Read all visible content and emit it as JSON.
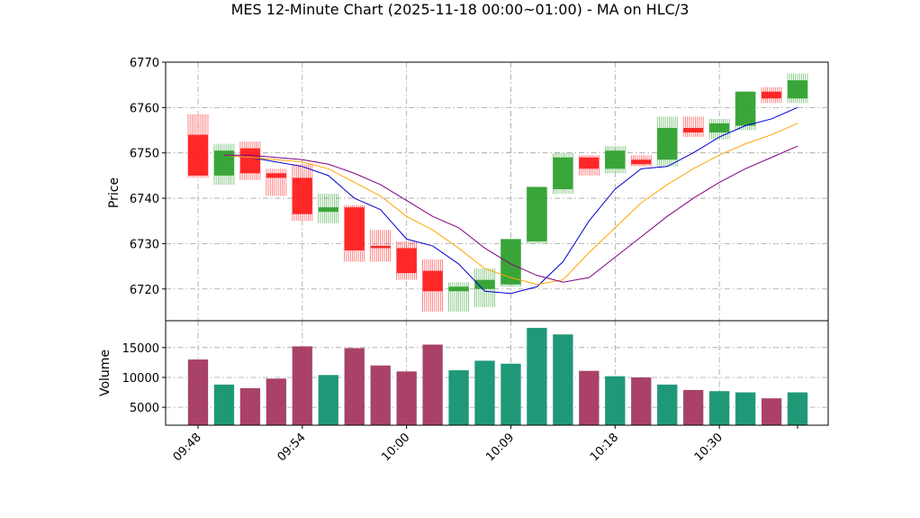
{
  "chart_data": {
    "type": "candlestick",
    "title": "MES 12-Minute Chart (2025-11-18 00:00~01:00) - MA on HLC/3",
    "x_tick_labels": [
      "09:48",
      "09:54",
      "10:00",
      "10:09",
      "10:18",
      "10:30"
    ],
    "price_panel": {
      "ylabel": "Price",
      "ylim": [
        6713,
        6770
      ],
      "yticks": [
        6720,
        6730,
        6740,
        6750,
        6760,
        6770
      ],
      "grid": true,
      "candles": [
        {
          "open": 6754,
          "high": 6758.5,
          "low": 6744.5,
          "close": 6745,
          "volume": 13000
        },
        {
          "open": 6745,
          "high": 6752,
          "low": 6743,
          "close": 6750.5,
          "volume": 8800
        },
        {
          "open": 6751,
          "high": 6752.5,
          "low": 6744,
          "close": 6745.5,
          "volume": 8200
        },
        {
          "open": 6745.5,
          "high": 6746.5,
          "low": 6740.5,
          "close": 6744.5,
          "volume": 9800
        },
        {
          "open": 6744.5,
          "high": 6747.5,
          "low": 6735,
          "close": 6736.5,
          "volume": 15200
        },
        {
          "open": 6737,
          "high": 6741,
          "low": 6734.5,
          "close": 6738,
          "volume": 10400
        },
        {
          "open": 6738,
          "high": 6738.5,
          "low": 6726,
          "close": 6728.5,
          "volume": 14900
        },
        {
          "open": 6729.5,
          "high": 6733,
          "low": 6726,
          "close": 6729,
          "volume": 12000
        },
        {
          "open": 6729,
          "high": 6730.5,
          "low": 6722,
          "close": 6723.5,
          "volume": 11000
        },
        {
          "open": 6724,
          "high": 6726.5,
          "low": 6715,
          "close": 6719.5,
          "volume": 15500
        },
        {
          "open": 6719.5,
          "high": 6721.5,
          "low": 6715,
          "close": 6720.5,
          "volume": 11200
        },
        {
          "open": 6720,
          "high": 6724.5,
          "low": 6716,
          "close": 6722,
          "volume": 12800
        },
        {
          "open": 6721,
          "high": 6731,
          "low": 6720.5,
          "close": 6731,
          "volume": 12300
        },
        {
          "open": 6730.5,
          "high": 6742.5,
          "low": 6730,
          "close": 6742.5,
          "volume": 18300
        },
        {
          "open": 6742,
          "high": 6750,
          "low": 6741,
          "close": 6749,
          "volume": 17200
        },
        {
          "open": 6749,
          "high": 6749.5,
          "low": 6745,
          "close": 6746.5,
          "volume": 11100
        },
        {
          "open": 6746.5,
          "high": 6751.5,
          "low": 6745.5,
          "close": 6750.5,
          "volume": 10200
        },
        {
          "open": 6748.5,
          "high": 6749.5,
          "low": 6747,
          "close": 6747.5,
          "volume": 10000
        },
        {
          "open": 6748.5,
          "high": 6758,
          "low": 6747,
          "close": 6755.5,
          "volume": 8800
        },
        {
          "open": 6755.5,
          "high": 6758,
          "low": 6753.5,
          "close": 6754.5,
          "volume": 7900
        },
        {
          "open": 6754.5,
          "high": 6757.5,
          "low": 6753,
          "close": 6756.5,
          "volume": 7700
        },
        {
          "open": 6756,
          "high": 6763.5,
          "low": 6755,
          "close": 6763.5,
          "volume": 7500
        },
        {
          "open": 6763.5,
          "high": 6764.5,
          "low": 6761,
          "close": 6762,
          "volume": 6500
        },
        {
          "open": 6762,
          "high": 6767.5,
          "low": 6761,
          "close": 6766,
          "volume": 7500
        }
      ],
      "moving_averages": [
        {
          "color": "#0000cc",
          "values": [
            6749.5,
            6749,
            6748,
            6747,
            6745,
            6740,
            6737.5,
            6731,
            6729.5,
            6725.5,
            6719.5,
            6719,
            6720.5,
            6726,
            6735,
            6742,
            6746.5,
            6747,
            6750,
            6753.5,
            6756,
            6757.5,
            6760
          ]
        },
        {
          "color": "#ffa500",
          "values": [
            6749.5,
            6749,
            6748.5,
            6748,
            6746.5,
            6743.5,
            6740.5,
            6736,
            6733,
            6729,
            6724.5,
            6722.5,
            6721,
            6722,
            6728,
            6733.5,
            6739,
            6743,
            6746.5,
            6749.5,
            6752,
            6754,
            6756.5
          ]
        },
        {
          "color": "#800080",
          "values": [
            6749.5,
            6749.5,
            6749,
            6748.5,
            6747.5,
            6745.5,
            6743,
            6739.5,
            6736,
            6733.5,
            6729,
            6725.5,
            6723,
            6721.5,
            6722.5,
            6727,
            6731.5,
            6736,
            6740,
            6743.5,
            6746.5,
            6749,
            6751.5
          ]
        }
      ]
    },
    "volume_panel": {
      "ylabel": "Volume",
      "ylim": [
        2000,
        19500
      ],
      "yticks": [
        5000,
        10000,
        15000
      ],
      "tick_labels": [
        "5000",
        "10000",
        "15000"
      ],
      "grid": true
    },
    "price_tick_labels": [
      "6720",
      "6730",
      "6740",
      "6750",
      "6760",
      "6770"
    ],
    "colors": {
      "up": "#2ca02c",
      "down": "#ff1a1a",
      "volume_up": "#1f9e6e",
      "volume_down": "#c0395c",
      "volume_edge": "#1f77b4",
      "grid": "#a0a0a0"
    }
  }
}
